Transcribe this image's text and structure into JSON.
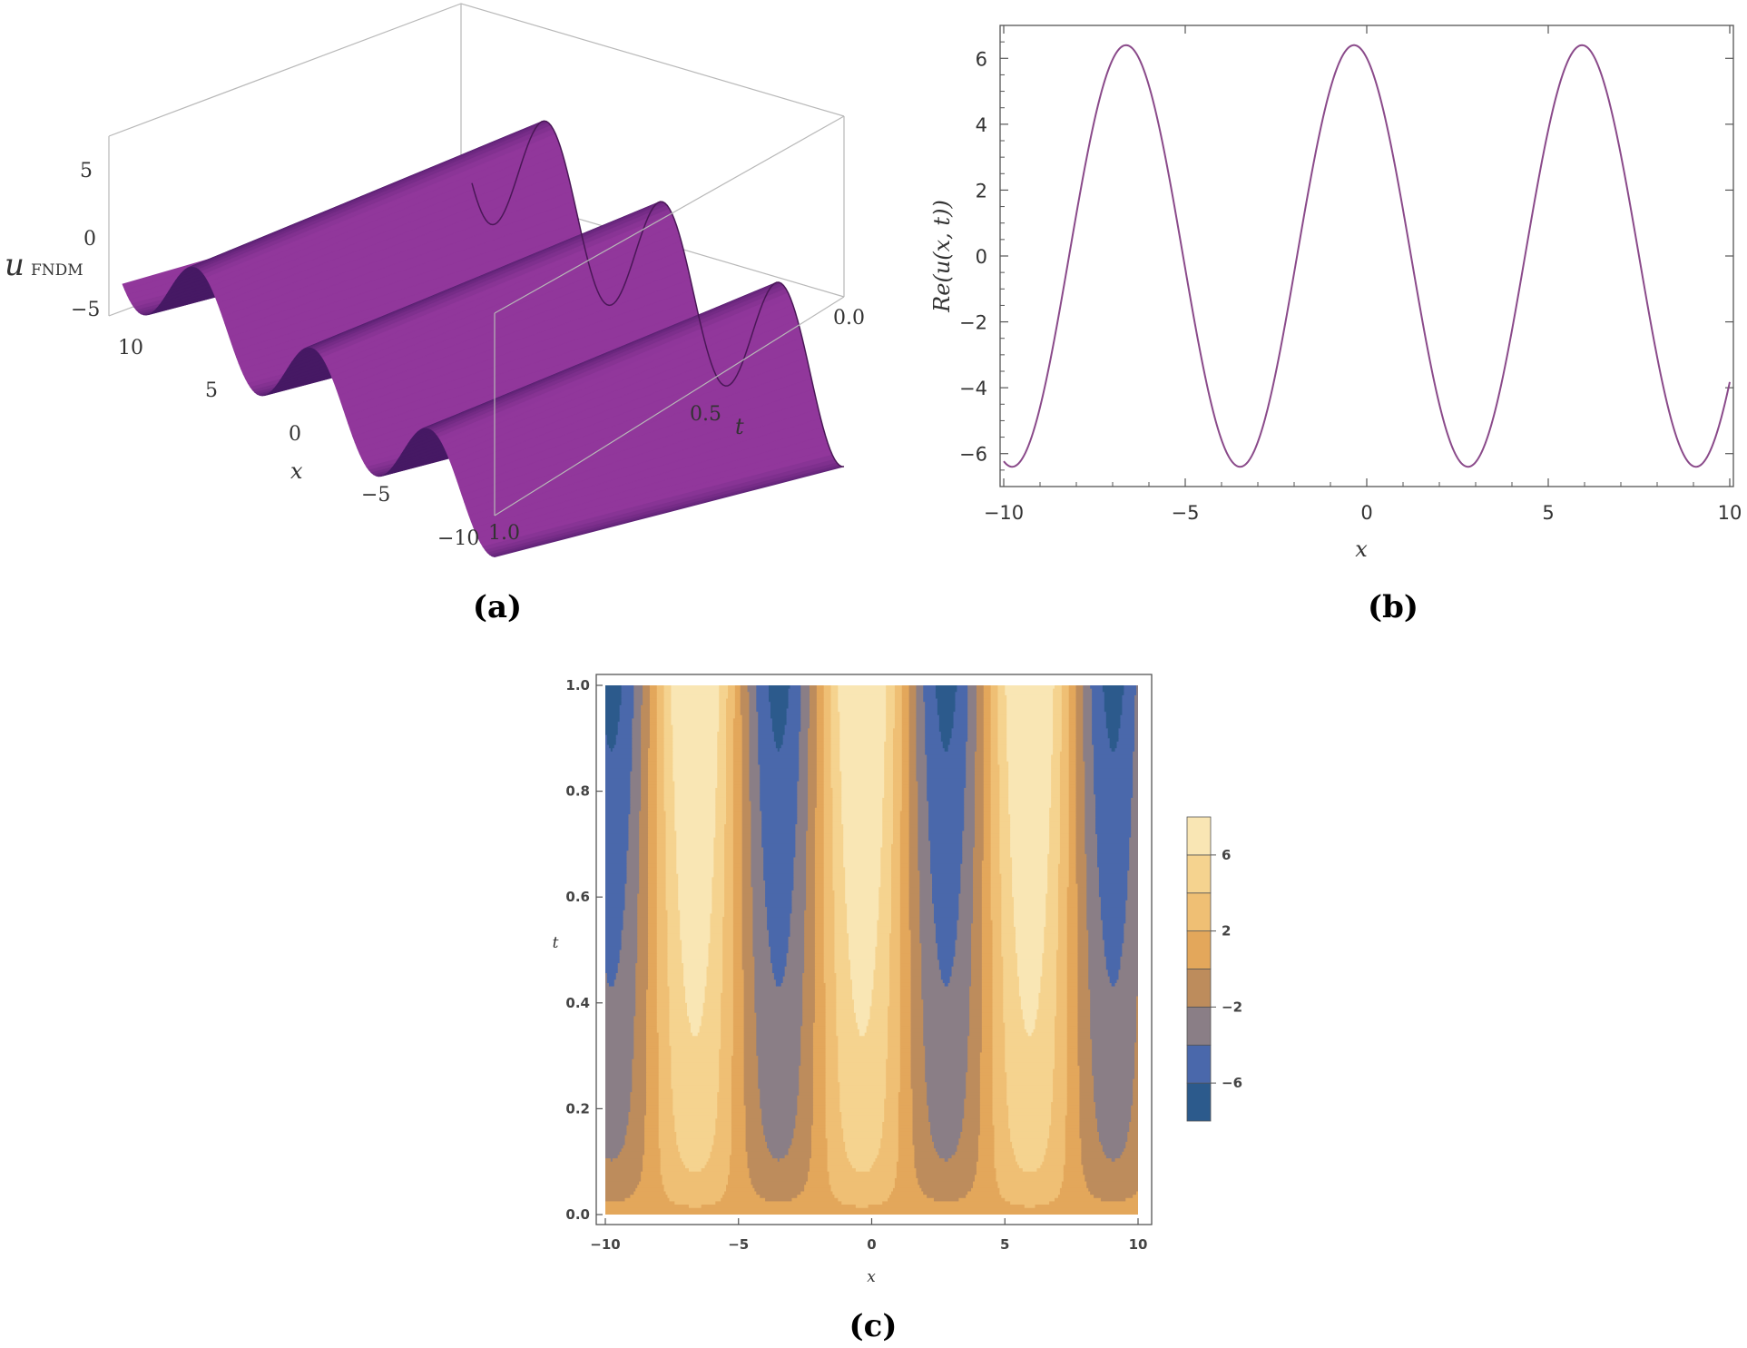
{
  "chart_data": [
    {
      "type": "surface3d",
      "panel": "(a)",
      "zlabel": "u",
      "zlabel_sub": "FNDM",
      "xlabel": "x",
      "ylabel": "t",
      "x_ticks": [
        "10",
        "5",
        "0",
        "−5",
        "−10"
      ],
      "t_ticks": [
        "0.0",
        "0.5",
        "1.0"
      ],
      "z_ticks": [
        "5",
        "0",
        "−5"
      ],
      "xlim": [
        -10,
        10
      ],
      "tlim": [
        0,
        1
      ],
      "zlim": [
        -6.4,
        6.4
      ],
      "amplitude": 6.4,
      "period": 6.28,
      "phase": 0.35,
      "color": "#7a2a8a"
    },
    {
      "type": "line",
      "panel": "(b)",
      "xlabel": "x",
      "ylabel": "Re(u(x, t))",
      "xlim": [
        -10,
        10
      ],
      "ylim": [
        -7,
        7
      ],
      "x_ticks": [
        -10,
        -5,
        0,
        5,
        10
      ],
      "x_tick_labels": [
        "−10",
        "−5",
        "0",
        "5",
        "10"
      ],
      "y_ticks": [
        -6,
        -4,
        -2,
        0,
        2,
        4,
        6
      ],
      "y_tick_labels": [
        "−6",
        "−4",
        "−2",
        "0",
        "2",
        "4",
        "6"
      ],
      "amplitude": 6.4,
      "period": 6.28,
      "phase": 0.35,
      "line_color": "#8a4a8a"
    },
    {
      "type": "contour",
      "panel": "(c)",
      "xlabel": "x",
      "ylabel": "t",
      "xlim": [
        -10,
        10
      ],
      "ylim": [
        0,
        1
      ],
      "x_ticks": [
        -10,
        -5,
        0,
        5,
        10
      ],
      "x_tick_labels": [
        "−10",
        "−5",
        "0",
        "5",
        "10"
      ],
      "y_ticks": [
        0,
        0.2,
        0.4,
        0.6,
        0.8,
        1.0
      ],
      "y_tick_labels": [
        "0.0",
        "0.2",
        "0.4",
        "0.6",
        "0.8",
        "1.0"
      ],
      "levels": [
        -8,
        -6,
        -4,
        -2,
        0,
        2,
        4,
        6,
        8
      ],
      "level_colors": [
        "#2c5a8c",
        "#4a68ab",
        "#8a7e86",
        "#bd8c5c",
        "#e3a75b",
        "#efbf74",
        "#f5d38f",
        "#f9e6b4"
      ],
      "legend_ticks": [
        6,
        2,
        -2,
        -6
      ],
      "legend_tick_labels": [
        "6",
        "2",
        "−2",
        "−6"
      ]
    }
  ],
  "captions": {
    "a": "(a)",
    "b": "(b)",
    "c": "(c)"
  }
}
